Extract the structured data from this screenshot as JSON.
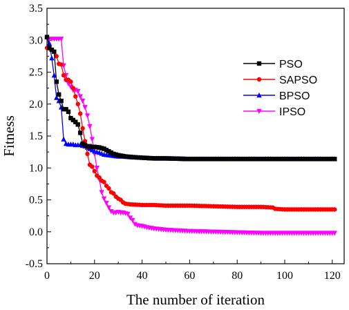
{
  "chart_data": {
    "type": "line",
    "xlabel": "The number of iteration",
    "ylabel": "Fitness",
    "xlim": [
      0,
      125
    ],
    "ylim": [
      -0.5,
      3.5
    ],
    "xticks": [
      0,
      20,
      40,
      60,
      80,
      100,
      120
    ],
    "yticks": [
      -0.5,
      0.0,
      0.5,
      1.0,
      1.5,
      2.0,
      2.5,
      3.0,
      3.5
    ],
    "ytick_labels": [
      "-0.5",
      "0.0",
      "0.5",
      "1.0",
      "1.5",
      "2.0",
      "2.5",
      "3.0",
      "3.5"
    ],
    "grid": false,
    "legend_position": "top-right",
    "series": [
      {
        "name": "PSO",
        "color": "#000000",
        "marker": "square",
        "points": [
          [
            0,
            3.05
          ],
          [
            1,
            2.88
          ],
          [
            2,
            2.85
          ],
          [
            3,
            2.82
          ],
          [
            4,
            2.35
          ],
          [
            5,
            2.15
          ],
          [
            6,
            2.05
          ],
          [
            7,
            1.92
          ],
          [
            8,
            1.92
          ],
          [
            9,
            1.88
          ],
          [
            10,
            1.78
          ],
          [
            11,
            1.75
          ],
          [
            12,
            1.72
          ],
          [
            13,
            1.68
          ],
          [
            14,
            1.55
          ],
          [
            15,
            1.38
          ],
          [
            16,
            1.36
          ],
          [
            17,
            1.34
          ],
          [
            18,
            1.34
          ],
          [
            19,
            1.33
          ],
          [
            20,
            1.33
          ],
          [
            22,
            1.32
          ],
          [
            24,
            1.3
          ],
          [
            26,
            1.26
          ],
          [
            28,
            1.22
          ],
          [
            30,
            1.2
          ],
          [
            33,
            1.18
          ],
          [
            36,
            1.17
          ],
          [
            40,
            1.16
          ],
          [
            45,
            1.15
          ],
          [
            50,
            1.15
          ],
          [
            60,
            1.14
          ],
          [
            70,
            1.14
          ],
          [
            80,
            1.14
          ],
          [
            90,
            1.14
          ],
          [
            100,
            1.14
          ],
          [
            110,
            1.14
          ],
          [
            121,
            1.14
          ]
        ]
      },
      {
        "name": "SAPSO",
        "color": "#ff0000",
        "marker": "circle",
        "points": [
          [
            0,
            2.88
          ],
          [
            1,
            2.87
          ],
          [
            2,
            2.85
          ],
          [
            3,
            2.82
          ],
          [
            4,
            2.75
          ],
          [
            5,
            2.63
          ],
          [
            6,
            2.62
          ],
          [
            7,
            2.45
          ],
          [
            8,
            2.38
          ],
          [
            9,
            2.38
          ],
          [
            10,
            2.35
          ],
          [
            11,
            2.25
          ],
          [
            12,
            2.12
          ],
          [
            13,
            2.0
          ],
          [
            14,
            1.85
          ],
          [
            15,
            1.62
          ],
          [
            16,
            1.42
          ],
          [
            17,
            1.22
          ],
          [
            18,
            1.05
          ],
          [
            19,
            1.02
          ],
          [
            20,
            0.95
          ],
          [
            21,
            0.88
          ],
          [
            22,
            0.85
          ],
          [
            23,
            0.8
          ],
          [
            24,
            0.78
          ],
          [
            25,
            0.72
          ],
          [
            26,
            0.68
          ],
          [
            27,
            0.62
          ],
          [
            28,
            0.6
          ],
          [
            29,
            0.55
          ],
          [
            30,
            0.52
          ],
          [
            31,
            0.5
          ],
          [
            32,
            0.46
          ],
          [
            33,
            0.44
          ],
          [
            35,
            0.43
          ],
          [
            40,
            0.42
          ],
          [
            45,
            0.42
          ],
          [
            50,
            0.41
          ],
          [
            60,
            0.41
          ],
          [
            70,
            0.4
          ],
          [
            80,
            0.39
          ],
          [
            90,
            0.39
          ],
          [
            95,
            0.38
          ],
          [
            96,
            0.36
          ],
          [
            100,
            0.35
          ],
          [
            110,
            0.35
          ],
          [
            121,
            0.35
          ]
        ]
      },
      {
        "name": "BPSO",
        "color": "#0000ff",
        "marker": "triangle",
        "points": [
          [
            0,
            3.05
          ],
          [
            1,
            2.95
          ],
          [
            2,
            2.72
          ],
          [
            3,
            2.45
          ],
          [
            4,
            2.1
          ],
          [
            5,
            2.05
          ],
          [
            6,
            1.95
          ],
          [
            7,
            1.45
          ],
          [
            8,
            1.38
          ],
          [
            9,
            1.37
          ],
          [
            10,
            1.37
          ],
          [
            11,
            1.37
          ],
          [
            12,
            1.36
          ],
          [
            13,
            1.36
          ],
          [
            14,
            1.36
          ],
          [
            15,
            1.35
          ],
          [
            16,
            1.34
          ],
          [
            17,
            1.32
          ],
          [
            18,
            1.3
          ],
          [
            19,
            1.28
          ],
          [
            20,
            1.26
          ],
          [
            22,
            1.24
          ],
          [
            24,
            1.21
          ],
          [
            26,
            1.2
          ],
          [
            28,
            1.19
          ],
          [
            30,
            1.18
          ],
          [
            32,
            1.18
          ],
          [
            35,
            1.17
          ],
          [
            40,
            1.16
          ],
          [
            45,
            1.15
          ],
          [
            50,
            1.15
          ],
          [
            60,
            1.14
          ],
          [
            70,
            1.14
          ],
          [
            80,
            1.14
          ],
          [
            90,
            1.14
          ],
          [
            100,
            1.14
          ],
          [
            110,
            1.14
          ],
          [
            121,
            1.14
          ]
        ]
      },
      {
        "name": "IPSO",
        "color": "#ff00ff",
        "marker": "triangle-down",
        "points": [
          [
            0,
            3.02
          ],
          [
            1,
            3.02
          ],
          [
            2,
            3.02
          ],
          [
            3,
            3.02
          ],
          [
            4,
            3.02
          ],
          [
            5,
            3.02
          ],
          [
            6,
            3.02
          ],
          [
            7,
            2.6
          ],
          [
            8,
            2.45
          ],
          [
            9,
            2.32
          ],
          [
            10,
            2.27
          ],
          [
            11,
            2.22
          ],
          [
            12,
            2.22
          ],
          [
            13,
            2.2
          ],
          [
            14,
            2.12
          ],
          [
            15,
            2.05
          ],
          [
            16,
            1.95
          ],
          [
            17,
            1.82
          ],
          [
            18,
            1.65
          ],
          [
            19,
            1.45
          ],
          [
            20,
            1.22
          ],
          [
            21,
            1.0
          ],
          [
            22,
            0.82
          ],
          [
            23,
            0.62
          ],
          [
            24,
            0.52
          ],
          [
            25,
            0.45
          ],
          [
            26,
            0.38
          ],
          [
            27,
            0.32
          ],
          [
            28,
            0.3
          ],
          [
            29,
            0.3
          ],
          [
            30,
            0.31
          ],
          [
            31,
            0.3
          ],
          [
            32,
            0.3
          ],
          [
            33,
            0.29
          ],
          [
            34,
            0.28
          ],
          [
            35,
            0.22
          ],
          [
            36,
            0.18
          ],
          [
            37,
            0.12
          ],
          [
            38,
            0.1
          ],
          [
            40,
            0.09
          ],
          [
            42,
            0.07
          ],
          [
            45,
            0.05
          ],
          [
            50,
            0.03
          ],
          [
            55,
            0.02
          ],
          [
            60,
            0.01
          ],
          [
            70,
            0.0
          ],
          [
            80,
            -0.01
          ],
          [
            90,
            -0.02
          ],
          [
            100,
            -0.02
          ],
          [
            110,
            -0.02
          ],
          [
            121,
            -0.02
          ]
        ]
      }
    ]
  }
}
